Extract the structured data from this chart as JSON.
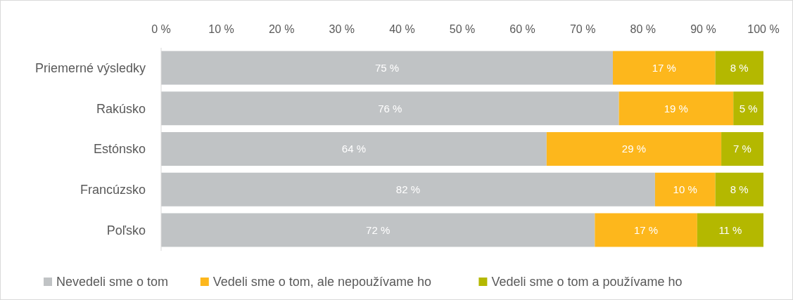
{
  "chart_data": {
    "type": "bar",
    "orientation": "horizontal",
    "stacked": true,
    "categories": [
      "Priemerné výsledky",
      "Rakúsko",
      "Estónsko",
      "Francúzsko",
      "Poľsko"
    ],
    "series": [
      {
        "name": "Nevedeli sme o tom",
        "color": "#c0c3c5",
        "values": [
          75,
          76,
          64,
          82,
          72
        ],
        "value_labels": [
          "75 %",
          "76 %",
          "64 %",
          "82 %",
          "72 %"
        ]
      },
      {
        "name": "Vedeli sme o tom, ale nepoužívame ho",
        "color": "#fdb71c",
        "values": [
          17,
          19,
          29,
          10,
          17
        ],
        "value_labels": [
          "17 %",
          "19 %",
          "29 %",
          "10 %",
          "17 %"
        ]
      },
      {
        "name": "Vedeli sme o tom a používame ho",
        "color": "#b4b800",
        "values": [
          8,
          5,
          7,
          8,
          11
        ],
        "value_labels": [
          "8 %",
          "5 %",
          "7 %",
          "8 %",
          "11 %"
        ]
      }
    ],
    "xlim": [
      0,
      100
    ],
    "xticks": [
      {
        "value": 0,
        "label": "0 %"
      },
      {
        "value": 10,
        "label": "10 %"
      },
      {
        "value": 20,
        "label": "20 %"
      },
      {
        "value": 30,
        "label": "30 %"
      },
      {
        "value": 40,
        "label": "40 %"
      },
      {
        "value": 50,
        "label": "50 %"
      },
      {
        "value": 60,
        "label": "60 %"
      },
      {
        "value": 70,
        "label": "70 %"
      },
      {
        "value": 80,
        "label": "80 %"
      },
      {
        "value": 90,
        "label": "90 %"
      },
      {
        "value": 100,
        "label": "100 %"
      }
    ],
    "grid": false,
    "legend": "bottom"
  }
}
